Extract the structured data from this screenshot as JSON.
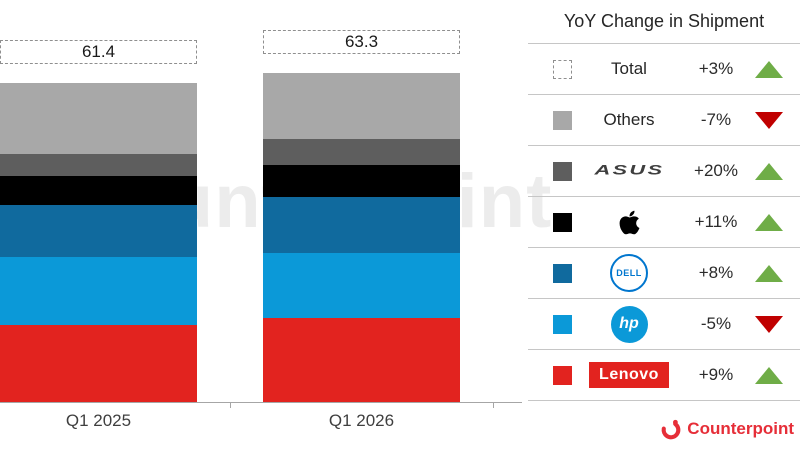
{
  "legend": {
    "title": "YoY Change in Shipment",
    "rows": [
      {
        "id": "total",
        "label": "Total",
        "logo": "text",
        "swatch": "dashed",
        "pct": "+3%",
        "direction": "up"
      },
      {
        "id": "others",
        "label": "Others",
        "logo": "text",
        "swatch": "#a8a8a8",
        "pct": "-7%",
        "direction": "down"
      },
      {
        "id": "asus",
        "label": "ASUS",
        "logo": "asus",
        "swatch": "#5e5e5e",
        "pct": "+20%",
        "direction": "up"
      },
      {
        "id": "apple",
        "label": "Apple",
        "logo": "apple",
        "swatch": "#000000",
        "pct": "+11%",
        "direction": "up"
      },
      {
        "id": "dell",
        "label": "DELL",
        "logo": "dell",
        "swatch": "#106a9e",
        "pct": "+8%",
        "direction": "up"
      },
      {
        "id": "hp",
        "label": "hp",
        "logo": "hp",
        "swatch": "#0b99d8",
        "pct": "-5%",
        "direction": "down"
      },
      {
        "id": "lenovo",
        "label": "Lenovo",
        "logo": "lenovo",
        "swatch": "#e2231f",
        "pct": "+9%",
        "direction": "up"
      }
    ]
  },
  "chart_data": {
    "type": "bar",
    "subtype": "stacked",
    "categories": [
      "Q1 2025",
      "Q1 2026"
    ],
    "totals": [
      61.4,
      63.3
    ],
    "stack_order": "bottom-to-top",
    "series": [
      {
        "name": "Lenovo",
        "color": "#e2231f",
        "values": [
          14.9,
          16.2
        ],
        "yoy": "+9%"
      },
      {
        "name": "HP",
        "color": "#0b99d8",
        "values": [
          13.0,
          12.4
        ],
        "yoy": "-5%"
      },
      {
        "name": "Dell",
        "color": "#106a9e",
        "values": [
          10.0,
          10.8
        ],
        "yoy": "+8%"
      },
      {
        "name": "Apple",
        "color": "#000000",
        "values": [
          5.6,
          6.2
        ],
        "yoy": "+11%"
      },
      {
        "name": "ASUS",
        "color": "#5e5e5e",
        "values": [
          4.1,
          4.9
        ],
        "yoy": "+20%"
      },
      {
        "name": "Others",
        "color": "#a8a8a8",
        "values": [
          13.8,
          12.8
        ],
        "yoy": "-7%"
      }
    ],
    "total_yoy": "+3%",
    "title": "YoY Change in Shipment",
    "xlabel": "",
    "ylabel": "",
    "ylim": [
      0,
      70
    ],
    "grid": false,
    "legend_position": "right",
    "total_labels_style": "dashed-box"
  },
  "watermark": {
    "text": "Counterpoint"
  },
  "footer": {
    "brand": "Counterpoint"
  },
  "colors": {
    "up": "#6fad47",
    "down": "#c00000",
    "brand_red": "#e62e38"
  }
}
